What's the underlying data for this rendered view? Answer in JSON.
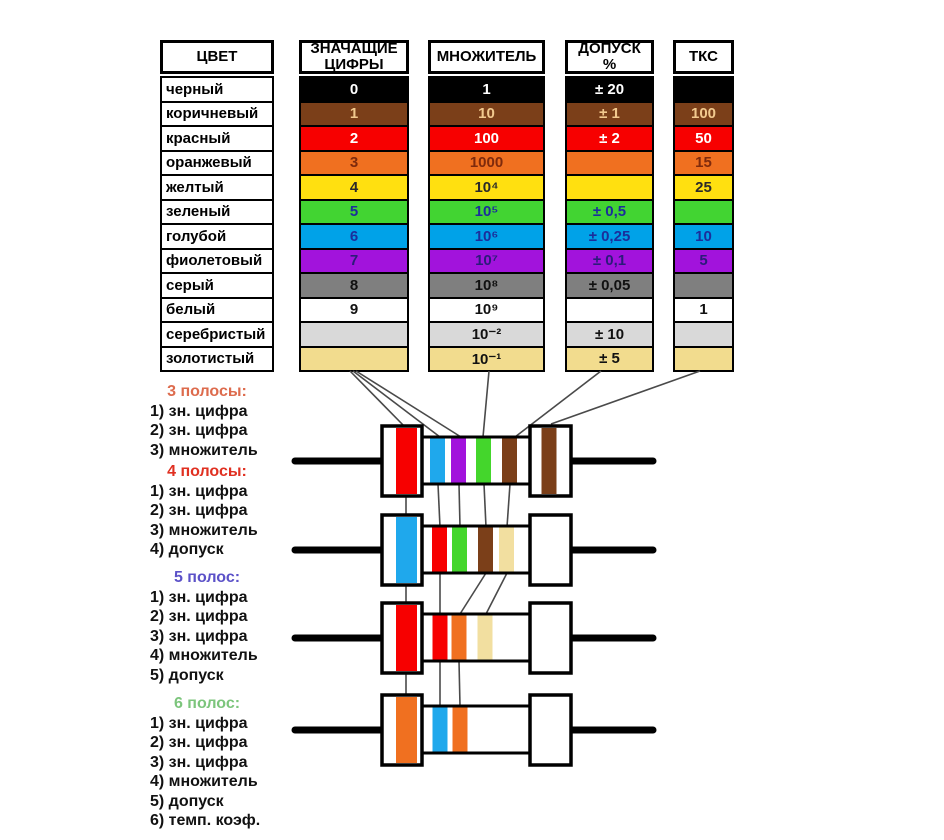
{
  "page": {
    "background": "#ffffff"
  },
  "table": {
    "headers": {
      "color": "ЦВЕТ",
      "digits": "ЗНАЧАЩИЕ ЦИФРЫ",
      "multiplier": "МНОЖИТЕЛЬ",
      "tolerance": "ДОПУСК %",
      "tkc": "ТКС"
    },
    "rows": [
      {
        "name": "черный",
        "bg": "#000000",
        "fg": "#ffffff",
        "digit": "0",
        "multiplier": "1",
        "tolerance": "± 20",
        "tkc": ""
      },
      {
        "name": "коричневый",
        "bg": "#7B3F19",
        "fg": "#F2C98E",
        "digit": "1",
        "multiplier": "10",
        "tolerance": "± 1",
        "tkc": "100"
      },
      {
        "name": "красный",
        "bg": "#F70000",
        "fg": "#FFFFFF",
        "digit": "2",
        "multiplier": "100",
        "tolerance": "± 2",
        "tkc": "50"
      },
      {
        "name": "оранжевый",
        "bg": "#F07020",
        "fg": "#7F2A0C",
        "digit": "3",
        "multiplier": "1000",
        "tolerance": "",
        "tkc": "15"
      },
      {
        "name": "желтый",
        "bg": "#FFE010",
        "fg": "#2A2A2A",
        "digit": "4",
        "multiplier": "10⁴",
        "tolerance": "",
        "tkc": "25"
      },
      {
        "name": "зеленый",
        "bg": "#42D432",
        "fg": "#1B2E9B",
        "digit": "5",
        "multiplier": "10⁵",
        "tolerance": "± 0,5",
        "tkc": ""
      },
      {
        "name": "голубой",
        "bg": "#00A2E8",
        "fg": "#1B2E9B",
        "digit": "6",
        "multiplier": "10⁶",
        "tolerance": "± 0,25",
        "tkc": "10"
      },
      {
        "name": "фиолетовый",
        "bg": "#A213DC",
        "fg": "#2B1B7A",
        "digit": "7",
        "multiplier": "10⁷",
        "tolerance": "± 0,1",
        "tkc": "5"
      },
      {
        "name": "серый",
        "bg": "#7F7F7F",
        "fg": "#111111",
        "digit": "8",
        "multiplier": "10⁸",
        "tolerance": "± 0,05",
        "tkc": ""
      },
      {
        "name": "белый",
        "bg": "#FFFFFF",
        "fg": "#111111",
        "digit": "9",
        "multiplier": "10⁹",
        "tolerance": "",
        "tkc": "1"
      },
      {
        "name": "серебристый",
        "bg": "#D9D9D9",
        "fg": "#111111",
        "digit": "",
        "multiplier": "10⁻²",
        "tolerance": "± 10",
        "tkc": ""
      },
      {
        "name": "золотистый",
        "bg": "#F2DC8E",
        "fg": "#111111",
        "digit": "",
        "multiplier": "10⁻¹",
        "tolerance": "± 5",
        "tkc": ""
      }
    ]
  },
  "legend": [
    {
      "title": "3 полосы:",
      "title_color": "#DD6B4D",
      "items": [
        "1) зн. цифра",
        "2) зн. цифра",
        "3) множитель"
      ]
    },
    {
      "title": "4 полосы:",
      "title_color": "#E03021",
      "items": [
        "1) зн. цифра",
        "2) зн. цифра",
        "3) множитель",
        "4) допуск"
      ]
    },
    {
      "title": "5 полос:",
      "title_color": "#5B51C8",
      "items": [
        "1) зн. цифра",
        "2) зн. цифра",
        "3) зн. цифра",
        "4) множитель",
        "5) допуск"
      ]
    },
    {
      "title": "6 полос:",
      "title_color": "#7CC57C",
      "items": [
        "1) зн. цифра",
        "2) зн. цифра",
        "3) зн. цифра",
        "4) множитель",
        "5) допуск",
        "6) темп. коэф."
      ]
    }
  ],
  "band_palette": {
    "red": "#F70000",
    "cyan": "#1FA8EC",
    "purple": "#A213DC",
    "green": "#44D62C",
    "brown": "#7B3F19",
    "gold": "#F2DFA0",
    "orange": "#F07020"
  },
  "resistors": [
    {
      "band_count": 6,
      "cap_left_band": "red",
      "body_bands": [
        "cyan",
        "purple",
        "green",
        "brown"
      ],
      "cap_right_band": "brown"
    },
    {
      "band_count": 5,
      "cap_left_band": "cyan",
      "body_bands": [
        "red",
        "green",
        "brown",
        "gold"
      ],
      "cap_right_band": ""
    },
    {
      "band_count": 4,
      "cap_left_band": "red",
      "body_bands": [
        "red",
        "orange",
        "gold"
      ],
      "cap_right_band": ""
    },
    {
      "band_count": 3,
      "cap_left_band": "orange",
      "body_bands": [
        "cyan",
        "orange"
      ],
      "cap_right_band": ""
    }
  ]
}
